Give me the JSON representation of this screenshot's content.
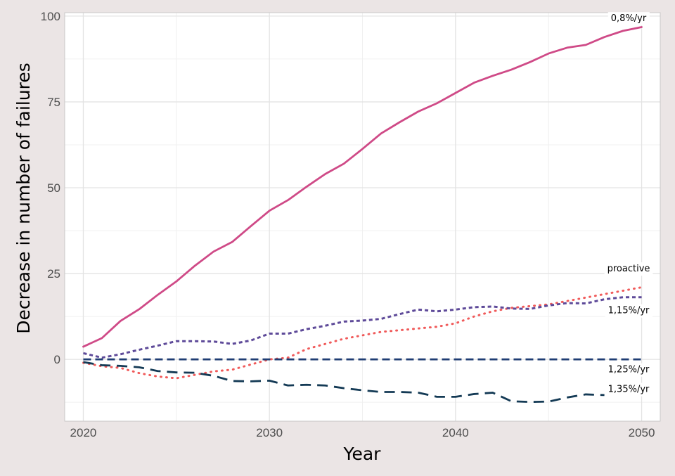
{
  "chart_data": {
    "type": "line",
    "title": "",
    "xlabel": "Year",
    "ylabel": "Decrease in number of failures",
    "xlim": [
      2019,
      2051
    ],
    "ylim": [
      -18,
      101
    ],
    "x_ticks": [
      2020,
      2030,
      2040,
      2050
    ],
    "y_ticks": [
      0,
      25,
      50,
      75,
      100
    ],
    "grid": true,
    "legend": "none",
    "x": [
      2020,
      2021,
      2022,
      2023,
      2024,
      2025,
      2026,
      2027,
      2028,
      2029,
      2030,
      2031,
      2032,
      2033,
      2034,
      2035,
      2036,
      2037,
      2038,
      2039,
      2040,
      2041,
      2042,
      2043,
      2044,
      2045,
      2046,
      2047,
      2048,
      2049,
      2050
    ],
    "series": [
      {
        "name": "0,8%/yr",
        "color": "#cf4a87",
        "style": "solid",
        "values": [
          3.7,
          6.2,
          11.2,
          14.6,
          18.8,
          22.7,
          27.3,
          31.4,
          34.2,
          38.8,
          43.3,
          46.4,
          50.3,
          54.0,
          57.0,
          61.3,
          65.8,
          69.1,
          72.2,
          74.6,
          77.6,
          80.6,
          82.6,
          84.4,
          86.6,
          89.1,
          90.8,
          91.6,
          93.9,
          95.7,
          96.8
        ]
      },
      {
        "name": "proactive",
        "color": "#f05a5a",
        "style": "dotted",
        "values": [
          -1.0,
          -2.0,
          -2.5,
          -4.0,
          -5.0,
          -5.5,
          -4.5,
          -3.5,
          -3.0,
          -1.5,
          0.0,
          0.5,
          3.0,
          4.5,
          6.0,
          7.0,
          8.0,
          8.5,
          9.0,
          9.5,
          10.5,
          12.5,
          14.0,
          15.0,
          15.5,
          16.0,
          17.0,
          18.0,
          19.0,
          20.0,
          21.0
        ]
      },
      {
        "name": "1,15%/yr",
        "color": "#5e4a99",
        "style": "dashed-short",
        "values": [
          1.8,
          0.5,
          1.5,
          2.8,
          4.0,
          5.3,
          5.3,
          5.2,
          4.5,
          5.5,
          7.5,
          7.5,
          8.8,
          9.8,
          11.0,
          11.3,
          11.8,
          13.2,
          14.5,
          14.0,
          14.5,
          15.2,
          15.4,
          14.8,
          14.7,
          15.7,
          16.4,
          16.3,
          17.5,
          18.1,
          18.1
        ]
      },
      {
        "name": "1,25%/yr",
        "color": "#1f3d73",
        "style": "dashed",
        "values": [
          0,
          0,
          0,
          0,
          0,
          0,
          0,
          0,
          0,
          0,
          0,
          0,
          0,
          0,
          0,
          0,
          0,
          0,
          0,
          0,
          0,
          0,
          0,
          0,
          0,
          0,
          0,
          0,
          0,
          0,
          0
        ]
      },
      {
        "name": "1,35%/yr",
        "color": "#143a55",
        "style": "dashed-long",
        "values": [
          -0.8,
          -1.7,
          -1.9,
          -2.3,
          -3.4,
          -3.8,
          -3.9,
          -4.8,
          -6.3,
          -6.4,
          -6.2,
          -7.6,
          -7.4,
          -7.6,
          -8.4,
          -9.0,
          -9.5,
          -9.5,
          -9.7,
          -10.9,
          -10.9,
          -10.1,
          -9.7,
          -12.2,
          -12.4,
          -12.3,
          -11.1,
          -10.2,
          -10.4,
          null,
          null
        ]
      }
    ]
  }
}
